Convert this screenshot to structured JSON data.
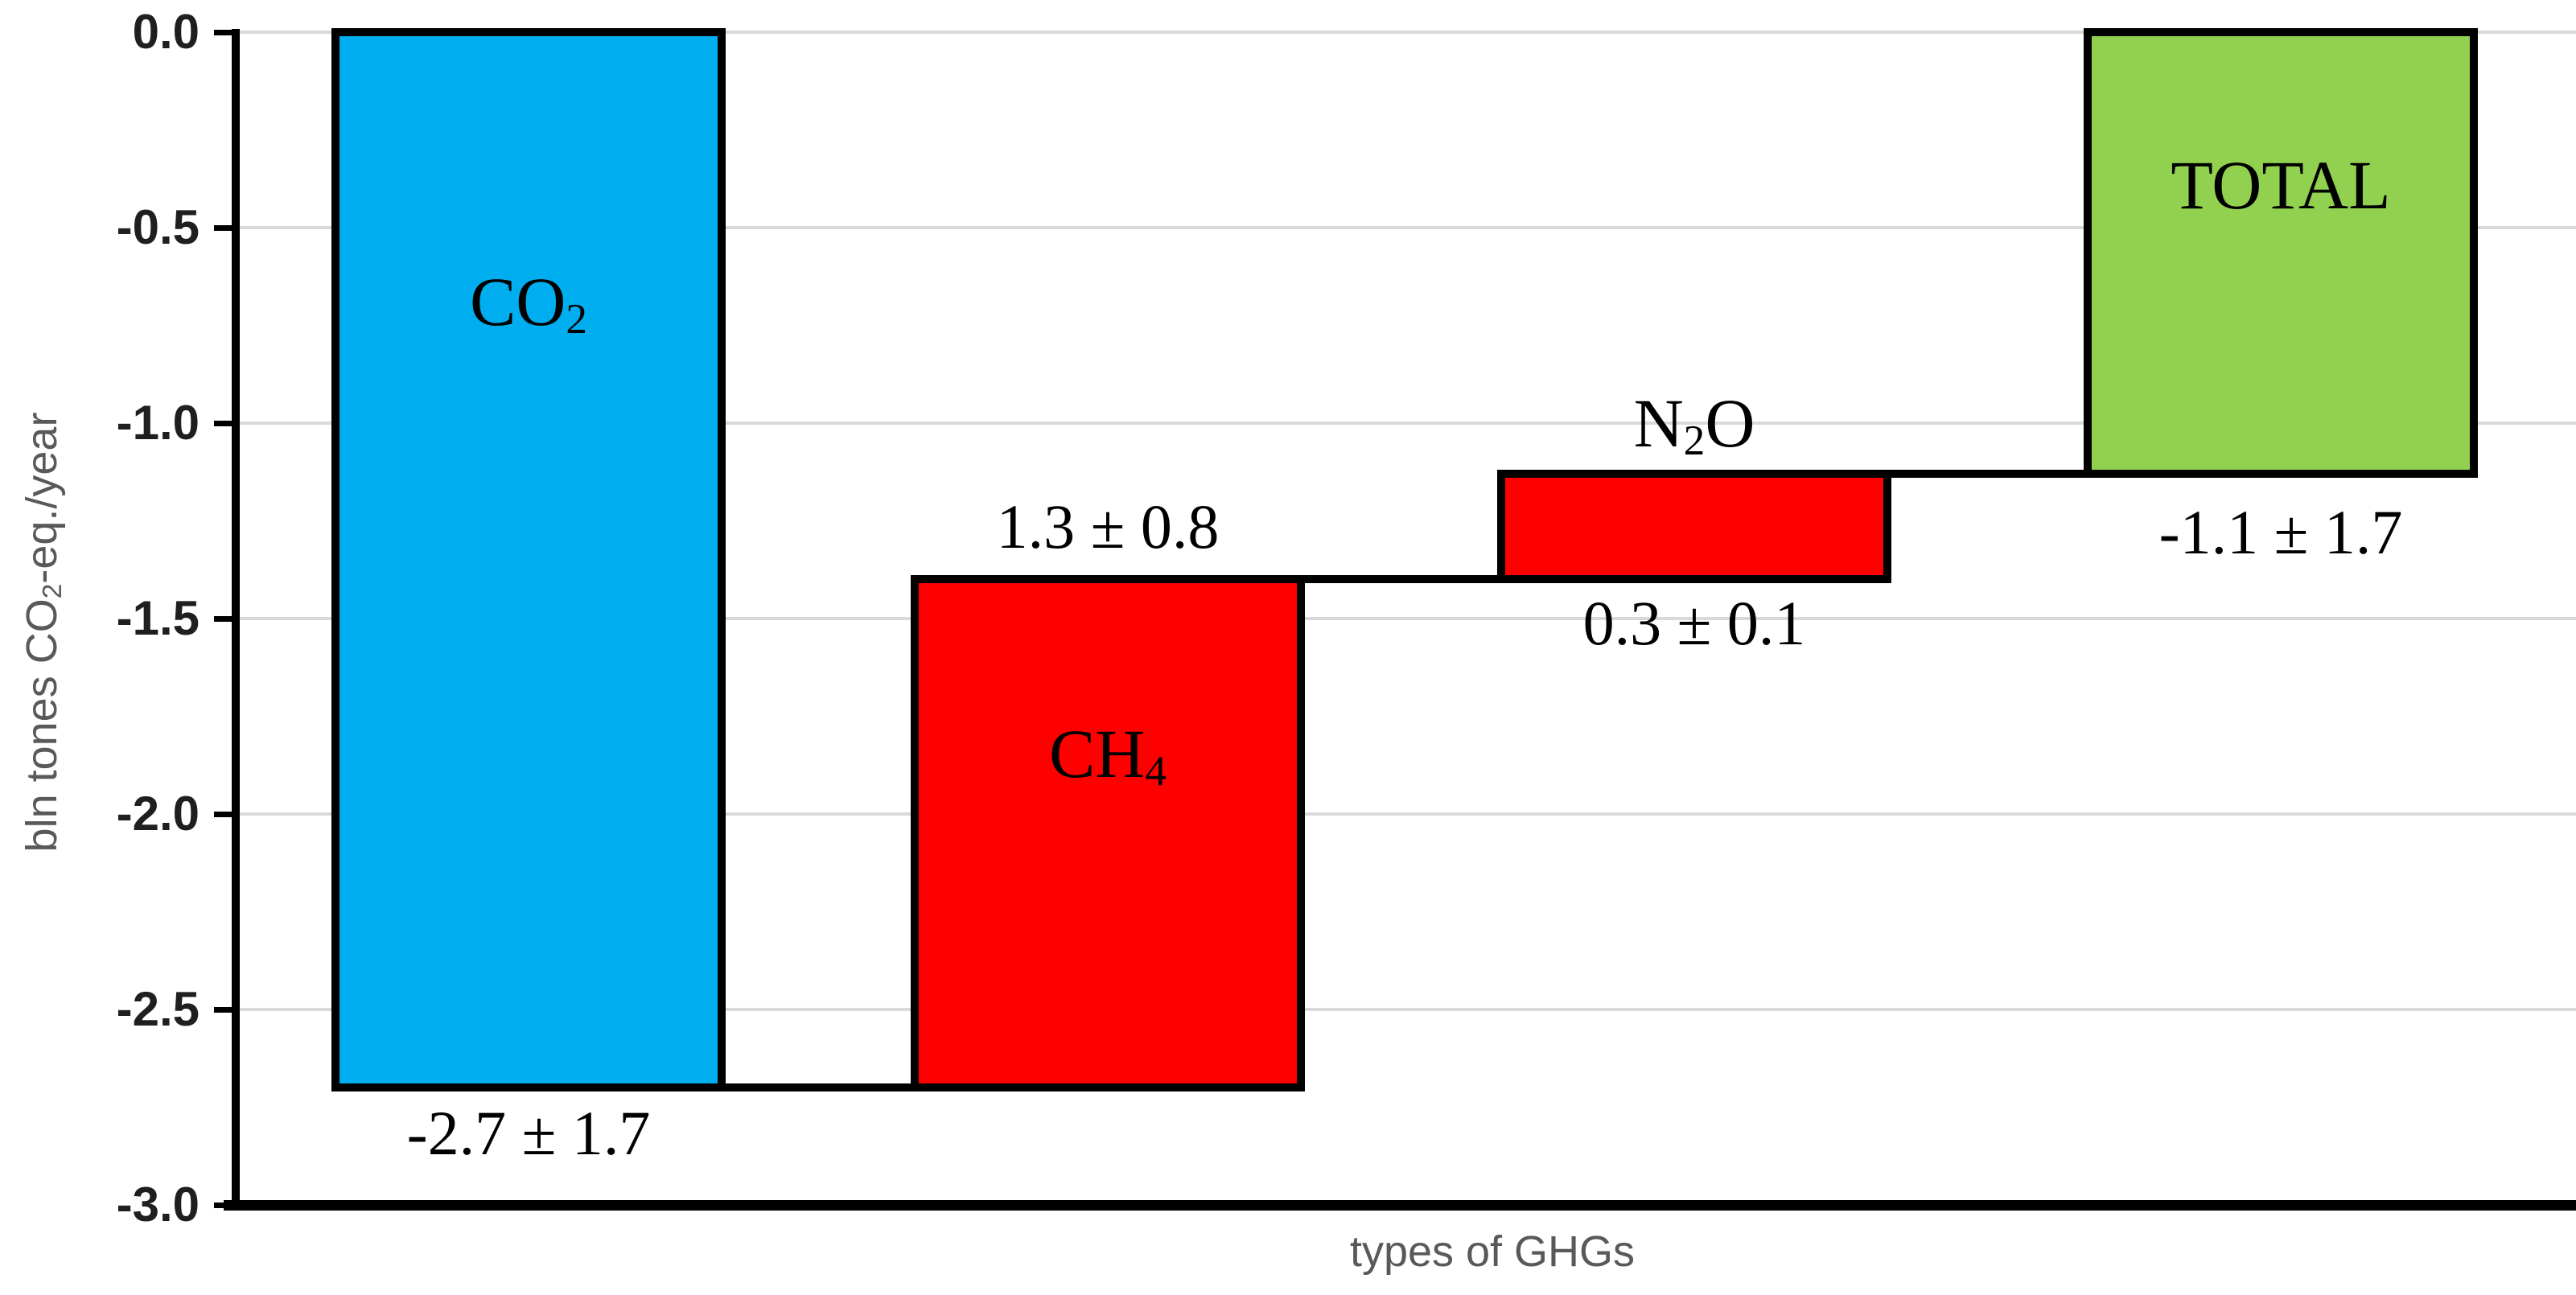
{
  "chart_data": {
    "type": "bar",
    "subtype": "waterfall",
    "title": "",
    "xlabel": "types of GHGs",
    "ylabel": {
      "pre": "bln tones CO",
      "sub": "2",
      "post": "-eq./year"
    },
    "ylabel_text": "bln tones CO2-eq./year",
    "ylim": [
      -3.0,
      0.0
    ],
    "ytick_step": 0.5,
    "grid": true,
    "legend": "none",
    "yticks": [
      {
        "label": "0.0",
        "value": 0.0
      },
      {
        "label": "-0.5",
        "value": -0.5
      },
      {
        "label": "-1.0",
        "value": -1.0
      },
      {
        "label": "-1.5",
        "value": -1.5
      },
      {
        "label": "-2.0",
        "value": -2.0
      },
      {
        "label": "-2.5",
        "value": -2.5
      },
      {
        "label": "-3.0",
        "value": -3.0
      }
    ],
    "categories": [
      "CO2",
      "CH4",
      "N2O",
      "TOTAL"
    ],
    "bars": [
      {
        "id": "co2",
        "formula": {
          "pre": "CO",
          "sub": "2",
          "post": ""
        },
        "value_label": "-2.7 ± 1.7",
        "segment_start": 0.0,
        "segment_end": -2.7,
        "fill_color": "#00AEEF",
        "name_label_position": "inside",
        "value_label_position": "below"
      },
      {
        "id": "ch4",
        "formula": {
          "pre": "CH",
          "sub": "4",
          "post": ""
        },
        "value_label": "1.3 ± 0.8",
        "segment_start": -2.7,
        "segment_end": -1.4,
        "fill_color": "#FE0000",
        "name_label_position": "inside",
        "value_label_position": "above"
      },
      {
        "id": "n2o",
        "formula": {
          "pre": "N",
          "sub": "2",
          "post": "O"
        },
        "value_label": "0.3 ± 0.1",
        "segment_start": -1.4,
        "segment_end": -1.13,
        "fill_color": "#FE0000",
        "name_label_position": "above",
        "value_label_position": "below"
      },
      {
        "id": "total",
        "formula": {
          "pre": "TOTAL",
          "sub": "",
          "post": ""
        },
        "value_label": "-1.1 ± 1.7",
        "segment_start": 0.0,
        "segment_end": -1.13,
        "fill_color": "#92D050",
        "name_label_position": "inside",
        "value_label_position": "below"
      }
    ],
    "colors": {
      "bar_border": "#000000",
      "gridline": "#D9D9D9",
      "axis": "#000000",
      "tick_label": "#1F1F1F",
      "axis_title": "#595959",
      "background": "#FFFFFF"
    }
  }
}
